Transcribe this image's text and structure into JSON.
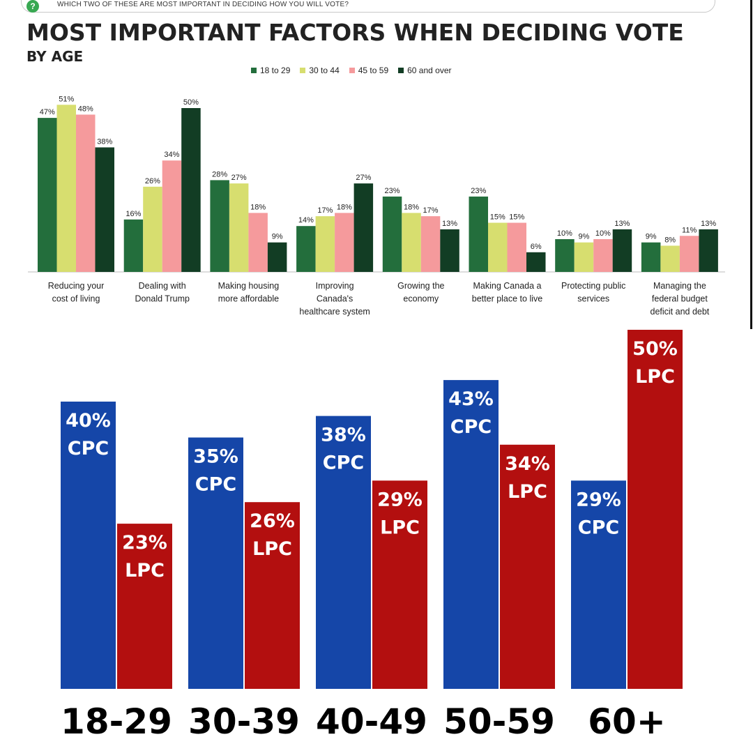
{
  "header": {
    "question": "WHICH TWO OF THESE ARE MOST IMPORTANT IN DECIDING HOW YOU WILL VOTE?",
    "title": "MOST IMPORTANT FACTORS WHEN DECIDING VOTE",
    "subtitle": "BY AGE",
    "icon": "question-circle-icon"
  },
  "colors": {
    "g18_29": "#236e3c",
    "g30_44": "#d7de6f",
    "g45_59": "#f59a9c",
    "g60_over": "#123d24",
    "cpc": "#1546a8",
    "lpc": "#b30f0f"
  },
  "chart_data": [
    {
      "type": "bar",
      "title": "MOST IMPORTANT FACTORS WHEN DECIDING VOTE",
      "subtitle": "BY AGE",
      "legend_position": "top",
      "grid": false,
      "categories": [
        "Reducing your cost of living",
        "Dealing with Donald Trump",
        "Making housing more affordable",
        "Improving Canada's healthcare system",
        "Growing the economy",
        "Making Canada a better place to live",
        "Protecting public services",
        "Managing the federal budget deficit and debt"
      ],
      "category_lines": [
        [
          "Reducing your",
          "cost of living"
        ],
        [
          "Dealing with",
          "Donald Trump"
        ],
        [
          "Making housing",
          "more affordable"
        ],
        [
          "Improving",
          "Canada's",
          "healthcare system"
        ],
        [
          "Growing the",
          "economy"
        ],
        [
          "Making Canada a",
          "better place to live"
        ],
        [
          "Protecting public",
          "services"
        ],
        [
          "Managing the",
          "federal budget",
          "deficit and debt"
        ]
      ],
      "series": [
        {
          "name": "18 to 29",
          "color": "#236e3c",
          "values": [
            47,
            16,
            28,
            14,
            23,
            23,
            10,
            9
          ]
        },
        {
          "name": "30 to 44",
          "color": "#d7de6f",
          "values": [
            51,
            26,
            27,
            17,
            18,
            15,
            9,
            8
          ]
        },
        {
          "name": "45 to 59",
          "color": "#f59a9c",
          "values": [
            48,
            34,
            18,
            18,
            17,
            15,
            10,
            11
          ]
        },
        {
          "name": "60 and over",
          "color": "#123d24",
          "values": [
            38,
            50,
            9,
            27,
            13,
            6,
            13,
            13
          ]
        }
      ],
      "ylim": [
        0,
        55
      ],
      "value_suffix": "%"
    },
    {
      "type": "bar",
      "legend_position": "none",
      "grid": false,
      "categories": [
        "18-29",
        "30-39",
        "40-49",
        "50-59",
        "60+"
      ],
      "series": [
        {
          "name": "CPC",
          "color": "#1546a8",
          "values": [
            40,
            35,
            38,
            43,
            29
          ]
        },
        {
          "name": "LPC",
          "color": "#b30f0f",
          "values": [
            23,
            26,
            29,
            34,
            50
          ]
        }
      ],
      "ylim": [
        0,
        52
      ],
      "value_suffix": "%"
    }
  ]
}
